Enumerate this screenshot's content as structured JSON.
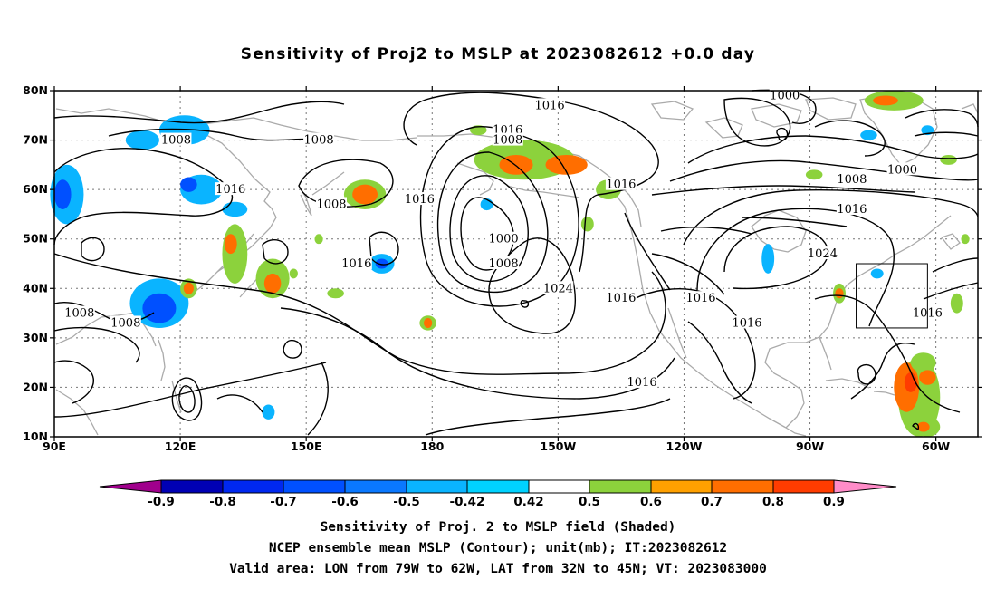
{
  "title": "Sensitivity of Proj2 to MSLP at 2023082612 +0.0 day",
  "map": {
    "lat_labels": [
      "80N",
      "70N",
      "60N",
      "50N",
      "40N",
      "30N",
      "20N",
      "10N"
    ],
    "lon_labels": [
      "90E",
      "120E",
      "150E",
      "180",
      "150W",
      "120W",
      "90W",
      "60W"
    ],
    "lat_range": [
      10,
      80
    ],
    "lon_range": [
      90,
      310
    ],
    "grid": true,
    "contour_labels": [
      {
        "text": "1016",
        "lon": 208,
        "lat": 77
      },
      {
        "text": "1000",
        "lon": 264,
        "lat": 79
      },
      {
        "text": "1016",
        "lon": 198,
        "lat": 72
      },
      {
        "text": "1008",
        "lon": 198,
        "lat": 70
      },
      {
        "text": "1008",
        "lon": 119,
        "lat": 70
      },
      {
        "text": "1008",
        "lon": 153,
        "lat": 70
      },
      {
        "text": "1016",
        "lon": 132,
        "lat": 60
      },
      {
        "text": "1008",
        "lon": 156,
        "lat": 57
      },
      {
        "text": "1016",
        "lon": 177,
        "lat": 58
      },
      {
        "text": "1016",
        "lon": 225,
        "lat": 61
      },
      {
        "text": "1008",
        "lon": 280,
        "lat": 62
      },
      {
        "text": "1000",
        "lon": 292,
        "lat": 64
      },
      {
        "text": "1016",
        "lon": 280,
        "lat": 56
      },
      {
        "text": "1000",
        "lon": 197,
        "lat": 50
      },
      {
        "text": "1008",
        "lon": 197,
        "lat": 45
      },
      {
        "text": "1024",
        "lon": 273,
        "lat": 47
      },
      {
        "text": "1016",
        "lon": 162,
        "lat": 45
      },
      {
        "text": "1024",
        "lon": 210,
        "lat": 40
      },
      {
        "text": "1016",
        "lon": 225,
        "lat": 38
      },
      {
        "text": "1016",
        "lon": 244,
        "lat": 38
      },
      {
        "text": "1016",
        "lon": 255,
        "lat": 33
      },
      {
        "text": "1016",
        "lon": 230,
        "lat": 21
      },
      {
        "text": "1008",
        "lon": 96,
        "lat": 35
      },
      {
        "text": "1008",
        "lon": 107,
        "lat": 33
      },
      {
        "text": "1016",
        "lon": 298,
        "lat": 35
      }
    ],
    "valid_box": {
      "lon_min": 281,
      "lon_max": 298,
      "lat_min": 32,
      "lat_max": 45
    }
  },
  "colorbar": {
    "labels": [
      "-0.9",
      "-0.8",
      "-0.7",
      "-0.6",
      "-0.5",
      "-0.42",
      "0.42",
      "0.5",
      "0.6",
      "0.7",
      "0.8",
      "0.9"
    ],
    "colors": [
      "#a0008c",
      "#0000b4",
      "#0028f0",
      "#0050ff",
      "#0a78ff",
      "#0ab4ff",
      "#00d2ff",
      "#ffffff",
      "#8cd23c",
      "#ffa000",
      "#ff6e00",
      "#ff3c00",
      "#ff0000",
      "#ff8cc8"
    ]
  },
  "captions": [
    "Sensitivity of Proj. 2 to MSLP field (Shaded)",
    "NCEP ensemble mean MSLP (Contour); unit(mb); IT:2023082612",
    "Valid area: LON from 79W to 62W, LAT from 32N to 45N; VT: 2023083000"
  ]
}
